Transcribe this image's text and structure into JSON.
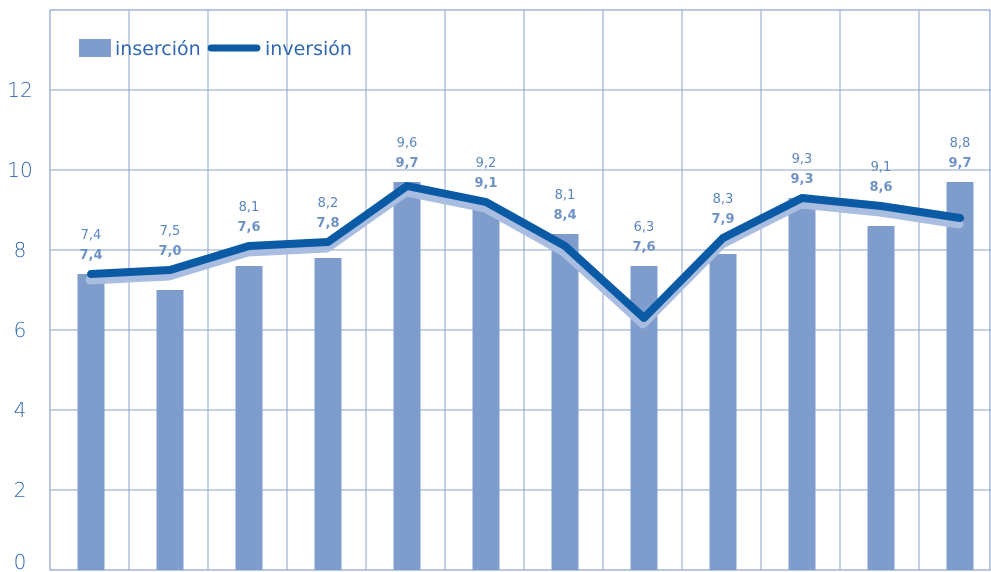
{
  "colors": {
    "bar": "#7e9dcc",
    "line": "#0a5aa5",
    "line_shadow": "#a9bde0",
    "grid": "#8aa3cf",
    "text": "#2f67b0",
    "label_inversion": "#5a85c0",
    "label_insercion": "#6e92c8"
  },
  "chart_data": {
    "type": "bar",
    "categories": [
      "",
      "",
      "",
      "",
      "",
      "",
      "",
      "",
      "",
      "",
      "",
      ""
    ],
    "series": [
      {
        "name": "inserción",
        "type": "bar",
        "values": [
          7.4,
          7.0,
          7.6,
          7.8,
          9.7,
          9.1,
          8.4,
          7.6,
          7.9,
          9.3,
          8.6,
          9.7
        ]
      },
      {
        "name": "inversión",
        "type": "line",
        "values": [
          7.4,
          7.5,
          8.1,
          8.2,
          9.6,
          9.2,
          8.1,
          6.3,
          8.3,
          9.3,
          9.1,
          8.8
        ]
      }
    ],
    "labels_insercion": [
      "7,4",
      "7,0",
      "7,6",
      "7,8",
      "9,7",
      "9,1",
      "8,4",
      "7,6",
      "7,9",
      "9,3",
      "8,6",
      "9,7"
    ],
    "labels_inversion": [
      "7,4",
      "7,5",
      "8,1",
      "8,2",
      "9,6",
      "9,2",
      "8,1",
      "6,3",
      "8,3",
      "9,3",
      "9,1",
      "8,8"
    ],
    "yticks": [
      0,
      2,
      4,
      6,
      8,
      10,
      12
    ],
    "ylim": [
      0,
      14
    ],
    "grid": true,
    "legend_position": "top-left",
    "title": "",
    "xlabel": "",
    "ylabel": ""
  }
}
